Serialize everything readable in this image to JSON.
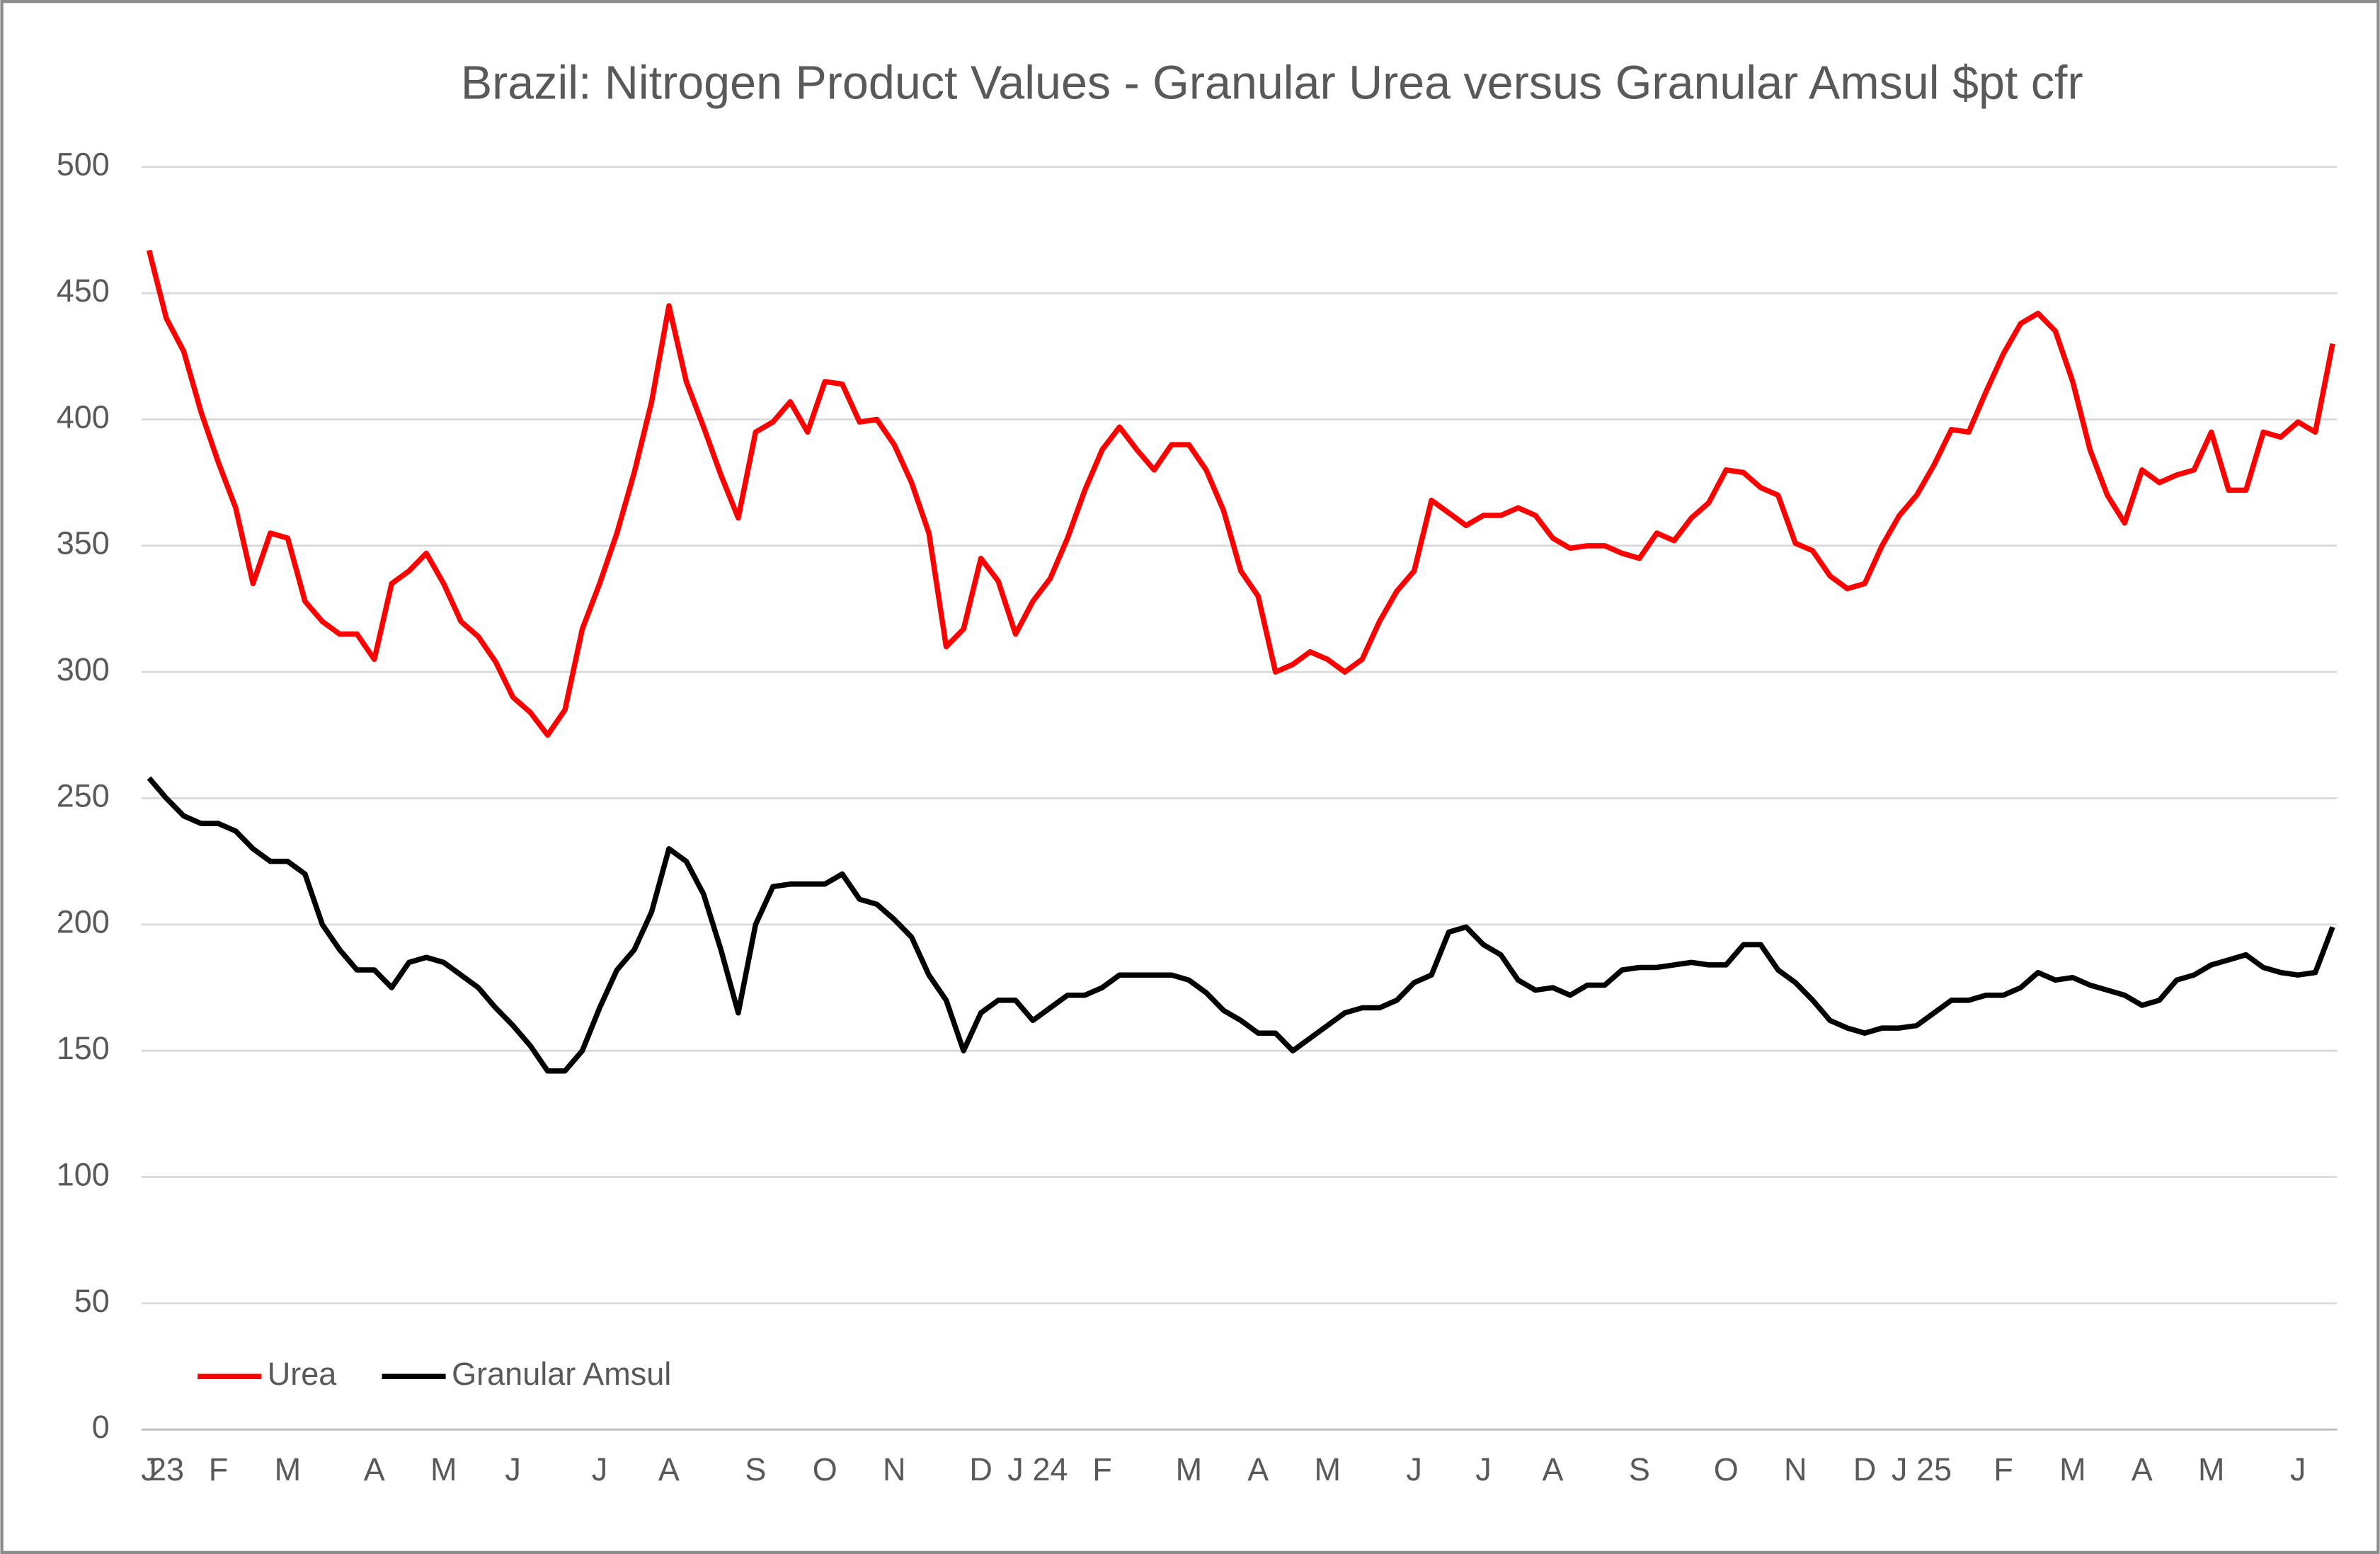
{
  "chart_data": {
    "type": "line",
    "title": "Brazil: Nitrogen Product Values - Granular Urea versus Granular Amsul $pt cfr",
    "categories": [
      "J",
      "23",
      null,
      null,
      "F",
      null,
      null,
      null,
      "M",
      null,
      null,
      null,
      null,
      "A",
      null,
      null,
      null,
      "M",
      null,
      null,
      null,
      "J",
      null,
      null,
      null,
      null,
      "J",
      null,
      null,
      null,
      "A",
      null,
      null,
      null,
      null,
      "S",
      null,
      null,
      null,
      "O",
      null,
      null,
      null,
      "N",
      null,
      null,
      null,
      null,
      "D",
      null,
      "J",
      null,
      "24",
      null,
      null,
      "F",
      null,
      null,
      null,
      null,
      "M",
      null,
      null,
      null,
      "A",
      null,
      null,
      null,
      "M",
      null,
      null,
      null,
      null,
      "J",
      null,
      null,
      null,
      "J",
      null,
      null,
      null,
      "A",
      null,
      null,
      null,
      null,
      "S",
      null,
      null,
      null,
      null,
      "O",
      null,
      null,
      null,
      "N",
      null,
      null,
      null,
      "D",
      null,
      "J",
      null,
      "25",
      null,
      null,
      null,
      "F",
      null,
      null,
      null,
      "M",
      null,
      null,
      null,
      "A",
      null,
      null,
      null,
      "M",
      null,
      null,
      null,
      null,
      "J",
      null,
      null
    ],
    "series": [
      {
        "name": "Urea",
        "color": "#ff0000",
        "values": [
          467,
          440,
          427,
          403,
          383,
          365,
          335,
          355,
          353,
          328,
          320,
          315,
          315,
          305,
          335,
          340,
          347,
          335,
          320,
          314,
          304,
          290,
          284,
          275,
          285,
          317,
          335,
          355,
          379,
          407,
          445,
          415,
          397,
          378,
          361,
          395,
          399,
          407,
          395,
          415,
          414,
          399,
          400,
          390,
          375,
          355,
          310,
          317,
          345,
          336,
          315,
          328,
          337,
          353,
          372,
          388,
          397,
          388,
          380,
          390,
          390,
          380,
          364,
          340,
          330,
          300,
          303,
          308,
          305,
          300,
          305,
          320,
          332,
          340,
          368,
          363,
          358,
          362,
          362,
          365,
          362,
          353,
          349,
          350,
          350,
          347,
          345,
          355,
          352,
          361,
          367,
          380,
          379,
          373,
          370,
          351,
          348,
          338,
          333,
          335,
          350,
          362,
          370,
          382,
          396,
          395,
          411,
          426,
          438,
          442,
          435,
          415,
          388,
          370,
          359,
          380,
          375,
          378,
          380,
          395,
          372,
          372,
          395,
          393,
          399,
          395,
          430
        ]
      },
      {
        "name": "Granular Amsul",
        "color": "#000000",
        "values": [
          258,
          250,
          243,
          240,
          240,
          237,
          230,
          225,
          225,
          220,
          200,
          190,
          182,
          182,
          175,
          185,
          187,
          185,
          180,
          175,
          167,
          160,
          152,
          142,
          142,
          150,
          167,
          182,
          190,
          205,
          230,
          225,
          212,
          190,
          165,
          200,
          215,
          216,
          216,
          216,
          220,
          210,
          208,
          202,
          195,
          180,
          170,
          150,
          165,
          170,
          170,
          162,
          167,
          172,
          172,
          175,
          180,
          180,
          180,
          180,
          178,
          173,
          166,
          162,
          157,
          157,
          150,
          155,
          160,
          165,
          167,
          167,
          170,
          177,
          180,
          197,
          199,
          192,
          188,
          178,
          174,
          175,
          172,
          176,
          176,
          182,
          183,
          183,
          184,
          185,
          184,
          184,
          192,
          192,
          182,
          177,
          170,
          162,
          159,
          157,
          159,
          159,
          160,
          165,
          170,
          170,
          172,
          172,
          175,
          181,
          178,
          179,
          176,
          174,
          172,
          168,
          170,
          178,
          180,
          184,
          186,
          188,
          183,
          181,
          180,
          181,
          199
        ]
      }
    ],
    "ylim": [
      0,
      500
    ],
    "yticks": [
      0,
      50,
      100,
      150,
      200,
      250,
      300,
      350,
      400,
      450,
      500
    ],
    "grid": true,
    "legend": "bottom-left"
  }
}
